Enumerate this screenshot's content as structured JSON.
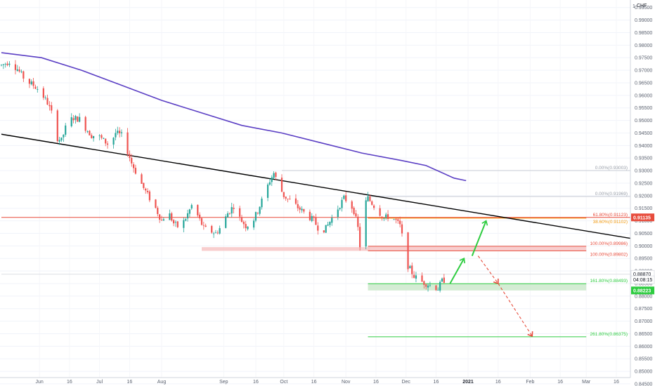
{
  "chart_data": {
    "type": "candlestick",
    "currency": "CHF",
    "ylim": [
      0.8475,
      0.998
    ],
    "y_ticks": [
      "0.99500",
      "0.99000",
      "0.98500",
      "0.98000",
      "0.97500",
      "0.97000",
      "0.96500",
      "0.96000",
      "0.95500",
      "0.95000",
      "0.94500",
      "0.94000",
      "0.93500",
      "0.93000",
      "0.92500",
      "0.92000",
      "0.91500",
      "0.91000",
      "0.90500",
      "0.90000",
      "0.89500",
      "0.89000",
      "0.88500",
      "0.88000",
      "0.87500",
      "0.87000",
      "0.86500",
      "0.86000",
      "0.85500",
      "0.85000",
      "0.84500"
    ],
    "y_tick_top": "1",
    "x_ticks": [
      {
        "label": "Jun",
        "day": 19,
        "bold": false
      },
      {
        "label": "16",
        "day": 34,
        "bold": false
      },
      {
        "label": "Jul",
        "day": 49,
        "bold": false
      },
      {
        "label": "16",
        "day": 64,
        "bold": false
      },
      {
        "label": "Aug",
        "day": 80,
        "bold": false
      },
      {
        "label": "Sep",
        "day": 111,
        "bold": false
      },
      {
        "label": "16",
        "day": 127,
        "bold": false
      },
      {
        "label": "Oct",
        "day": 141,
        "bold": false
      },
      {
        "label": "16",
        "day": 156,
        "bold": false
      },
      {
        "label": "Nov",
        "day": 172,
        "bold": false
      },
      {
        "label": "16",
        "day": 187,
        "bold": false
      },
      {
        "label": "Dec",
        "day": 202,
        "bold": false
      },
      {
        "label": "16",
        "day": 217,
        "bold": false
      },
      {
        "label": "2021",
        "day": 233,
        "bold": true
      },
      {
        "label": "16",
        "day": 248,
        "bold": false
      },
      {
        "label": "Feb",
        "day": 264,
        "bold": false
      },
      {
        "label": "16",
        "day": 279,
        "bold": false
      },
      {
        "label": "Mar",
        "day": 292,
        "bold": false
      },
      {
        "label": "16",
        "day": 307,
        "bold": false
      }
    ],
    "price_path": [
      [
        0,
        0.972
      ],
      [
        4,
        0.9735
      ],
      [
        8,
        0.9705
      ],
      [
        12,
        0.966
      ],
      [
        16,
        0.964
      ],
      [
        19,
        0.962
      ],
      [
        23,
        0.957
      ],
      [
        26,
        0.951
      ],
      [
        28,
        0.943
      ],
      [
        30,
        0.942
      ],
      [
        33,
        0.9495
      ],
      [
        36,
        0.951
      ],
      [
        39,
        0.9505
      ],
      [
        42,
        0.947
      ],
      [
        45,
        0.944
      ],
      [
        48,
        0.944
      ],
      [
        51,
        0.942
      ],
      [
        54,
        0.94
      ],
      [
        57,
        0.945
      ],
      [
        60,
        0.944
      ],
      [
        62,
        0.94
      ],
      [
        65,
        0.933
      ],
      [
        68,
        0.928
      ],
      [
        71,
        0.923
      ],
      [
        74,
        0.919
      ],
      [
        77,
        0.915
      ],
      [
        80,
        0.91
      ],
      [
        83,
        0.914
      ],
      [
        86,
        0.909
      ],
      [
        89,
        0.907
      ],
      [
        92,
        0.911
      ],
      [
        95,
        0.916
      ],
      [
        98,
        0.912
      ],
      [
        101,
        0.907
      ],
      [
        104,
        0.906
      ],
      [
        107,
        0.905
      ],
      [
        110,
        0.908
      ],
      [
        113,
        0.913
      ],
      [
        116,
        0.916
      ],
      [
        119,
        0.911
      ],
      [
        122,
        0.908
      ],
      [
        125,
        0.909
      ],
      [
        128,
        0.914
      ],
      [
        131,
        0.92
      ],
      [
        134,
        0.926
      ],
      [
        136,
        0.929
      ],
      [
        138,
        0.925
      ],
      [
        141,
        0.92
      ],
      [
        144,
        0.918
      ],
      [
        147,
        0.916
      ],
      [
        150,
        0.914
      ],
      [
        153,
        0.912
      ],
      [
        156,
        0.91
      ],
      [
        159,
        0.906
      ],
      [
        162,
        0.907
      ],
      [
        165,
        0.911
      ],
      [
        168,
        0.915
      ],
      [
        171,
        0.919
      ],
      [
        174,
        0.917
      ],
      [
        176,
        0.914
      ],
      [
        178,
        0.907
      ],
      [
        179,
        0.9
      ],
      [
        181,
        0.916
      ],
      [
        183,
        0.919
      ],
      [
        185,
        0.917
      ],
      [
        188,
        0.914
      ],
      [
        191,
        0.911
      ],
      [
        194,
        0.912
      ],
      [
        197,
        0.91
      ],
      [
        199,
        0.908
      ],
      [
        201,
        0.9
      ],
      [
        203,
        0.892
      ],
      [
        206,
        0.888
      ],
      [
        209,
        0.886
      ],
      [
        212,
        0.885
      ],
      [
        215,
        0.884
      ],
      [
        218,
        0.883
      ],
      [
        220,
        0.886
      ],
      [
        223,
        0.887
      ]
    ],
    "ma_path": [
      [
        0,
        0.977
      ],
      [
        20,
        0.975
      ],
      [
        40,
        0.97
      ],
      [
        60,
        0.964
      ],
      [
        80,
        0.958
      ],
      [
        100,
        0.953
      ],
      [
        120,
        0.948
      ],
      [
        140,
        0.945
      ],
      [
        160,
        0.941
      ],
      [
        180,
        0.937
      ],
      [
        200,
        0.934
      ],
      [
        212,
        0.932
      ],
      [
        226,
        0.927
      ],
      [
        232,
        0.926
      ]
    ],
    "trendline": {
      "x": [
        0,
        320
      ],
      "y": [
        0.9445,
        0.903
      ]
    },
    "zones": [
      {
        "name": "support-zone-left",
        "x": [
          100,
          184
        ],
        "y": [
          0.898,
          0.8995
        ],
        "color": "#f7c5c5"
      },
      {
        "name": "resistance-zone",
        "x": [
          183,
          292
        ],
        "y": [
          0.89802,
          0.89986
        ],
        "color": "#f7c5c5"
      },
      {
        "name": "support-zone-green",
        "x": [
          183,
          292
        ],
        "y": [
          0.88223,
          0.88493
        ],
        "color": "#cde9cd"
      }
    ],
    "hlines": [
      {
        "name": "fib-0-line",
        "y": 0.93003,
        "x": [
          140,
          320
        ],
        "color": "#c8ccd4",
        "label": "0.00%(0.93003)"
      },
      {
        "name": "fib-0-line-2",
        "y": 0.91969,
        "x": [
          183,
          320
        ],
        "color": "#c8ccd4",
        "label": "0.00%(0.91969)"
      },
      {
        "name": "resistance-line",
        "y": 0.91135,
        "x": [
          0,
          320
        ],
        "color": "#e74c3c",
        "label": ""
      },
      {
        "name": "fib-61-line",
        "y": 0.91123,
        "x": [
          183,
          292
        ],
        "color": "#e74c3c",
        "label": "61.80%(0.91123)"
      },
      {
        "name": "fib-38-line",
        "y": 0.91102,
        "x": [
          183,
          292
        ],
        "color": "#f39c12",
        "label": "38.60%(0.91102)"
      },
      {
        "name": "fib-100-upper-line",
        "y": 0.89986,
        "x": [
          183,
          292
        ],
        "color": "#e74c3c",
        "label": "100.00%(0.89986)"
      },
      {
        "name": "fib-100-lower-line",
        "y": 0.89802,
        "x": [
          183,
          292
        ],
        "color": "#e74c3c",
        "label": "100.00%(0.89802)"
      },
      {
        "name": "fib-161-line",
        "y": 0.88493,
        "x": [
          183,
          292
        ],
        "color": "#2ecc40",
        "label": "161.80%(0.88493)"
      },
      {
        "name": "fib-261-line",
        "y": 0.86375,
        "x": [
          183,
          292
        ],
        "color": "#2ecc40",
        "label": "261.80%(0.86375)"
      },
      {
        "name": "current-price-line",
        "y": 0.8887,
        "x": [
          0,
          320
        ],
        "color": "#d1d4dc",
        "label": ""
      }
    ],
    "green_arrows": [
      {
        "from": [
          224,
          0.885
        ],
        "to": [
          231,
          0.895
        ]
      },
      {
        "from": [
          235,
          0.896
        ],
        "to": [
          242,
          0.91
        ]
      }
    ],
    "red_dashed_arrows": [
      {
        "from": [
          238,
          0.896
        ],
        "to": [
          248,
          0.885
        ]
      },
      {
        "from": [
          248,
          0.885
        ],
        "to": [
          265,
          0.864
        ]
      }
    ],
    "price_labels": [
      {
        "name": "label-resistance",
        "text": "0.91135",
        "y": 0.91135,
        "bg": "#e74c3c",
        "fg": "#ffffff"
      },
      {
        "name": "label-last",
        "text": "0.88870",
        "y": 0.8887,
        "bg": "#ffffff",
        "fg": "#131722"
      },
      {
        "name": "label-timer",
        "text": "04:08:15",
        "y": 0.8865,
        "bg": "#ffffff",
        "fg": "#131722"
      },
      {
        "name": "label-support",
        "text": "0.88223",
        "y": 0.88223,
        "bg": "#2ecc40",
        "fg": "#ffffff"
      }
    ],
    "up_color": "#26a69a",
    "down_color": "#ef5350",
    "ma_color": "#5b3fc4",
    "trendline_color": "#000000"
  }
}
